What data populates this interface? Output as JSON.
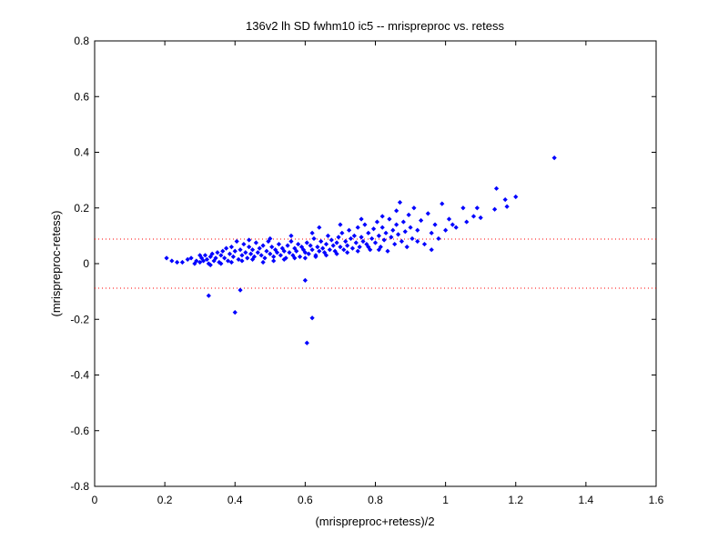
{
  "chart_data": {
    "type": "scatter",
    "title": "136v2 lh SD fwhm10 ic5 -- mrispreproc vs. retess",
    "xlabel": "(mrispreproc+retess)/2",
    "ylabel": "(mrispreproc-retess)",
    "xlim": [
      0,
      1.6
    ],
    "ylim": [
      -0.8,
      0.8
    ],
    "xticks": [
      "0",
      "0.2",
      "0.4",
      "0.6",
      "0.8",
      "1",
      "1.2",
      "1.4",
      "1.6"
    ],
    "yticks": [
      "-0.8",
      "-0.6",
      "-0.4",
      "-0.2",
      "0",
      "0.2",
      "0.4",
      "0.6",
      "0.8"
    ],
    "grid": false,
    "reference_lines_y": [
      0.088,
      -0.088
    ],
    "colors": {
      "points": "#0000ff",
      "reference": "#ff0000",
      "axes": "#000000"
    },
    "points": [
      [
        0.205,
        0.02
      ],
      [
        0.22,
        0.01
      ],
      [
        0.235,
        0.005
      ],
      [
        0.25,
        0.005
      ],
      [
        0.265,
        0.015
      ],
      [
        0.275,
        0.02
      ],
      [
        0.285,
        0.0
      ],
      [
        0.29,
        0.01
      ],
      [
        0.3,
        0.005
      ],
      [
        0.305,
        0.02
      ],
      [
        0.31,
        0.01
      ],
      [
        0.315,
        0.03
      ],
      [
        0.32,
        0.015
      ],
      [
        0.325,
        0.0
      ],
      [
        0.33,
        0.025
      ],
      [
        0.335,
        0.035
      ],
      [
        0.34,
        0.01
      ],
      [
        0.345,
        0.02
      ],
      [
        0.35,
        0.04
      ],
      [
        0.355,
        0.005
      ],
      [
        0.36,
        0.03
      ],
      [
        0.365,
        0.045
      ],
      [
        0.37,
        0.02
      ],
      [
        0.375,
        0.055
      ],
      [
        0.38,
        0.01
      ],
      [
        0.385,
        0.035
      ],
      [
        0.39,
        0.06
      ],
      [
        0.395,
        0.025
      ],
      [
        0.4,
        0.045
      ],
      [
        0.405,
        0.08
      ],
      [
        0.41,
        0.015
      ],
      [
        0.415,
        0.05
      ],
      [
        0.42,
        0.03
      ],
      [
        0.425,
        0.07
      ],
      [
        0.43,
        0.04
      ],
      [
        0.435,
        0.02
      ],
      [
        0.44,
        0.06
      ],
      [
        0.445,
        0.035
      ],
      [
        0.45,
        0.05
      ],
      [
        0.455,
        0.025
      ],
      [
        0.46,
        0.075
      ],
      [
        0.465,
        0.04
      ],
      [
        0.47,
        0.055
      ],
      [
        0.475,
        0.03
      ],
      [
        0.48,
        0.065
      ],
      [
        0.485,
        0.02
      ],
      [
        0.49,
        0.045
      ],
      [
        0.495,
        0.08
      ],
      [
        0.5,
        0.035
      ],
      [
        0.505,
        0.06
      ],
      [
        0.51,
        0.025
      ],
      [
        0.515,
        0.05
      ],
      [
        0.52,
        0.04
      ],
      [
        0.525,
        0.07
      ],
      [
        0.53,
        0.03
      ],
      [
        0.535,
        0.055
      ],
      [
        0.54,
        0.045
      ],
      [
        0.545,
        0.02
      ],
      [
        0.55,
        0.065
      ],
      [
        0.555,
        0.04
      ],
      [
        0.56,
        0.08
      ],
      [
        0.565,
        0.03
      ],
      [
        0.57,
        0.055
      ],
      [
        0.575,
        0.045
      ],
      [
        0.58,
        0.07
      ],
      [
        0.585,
        0.025
      ],
      [
        0.59,
        0.06
      ],
      [
        0.595,
        0.05
      ],
      [
        0.6,
        0.04
      ],
      [
        0.605,
        0.075
      ],
      [
        0.61,
        0.035
      ],
      [
        0.615,
        0.065
      ],
      [
        0.62,
        0.05
      ],
      [
        0.625,
        0.09
      ],
      [
        0.63,
        0.03
      ],
      [
        0.635,
        0.06
      ],
      [
        0.64,
        0.045
      ],
      [
        0.645,
        0.08
      ],
      [
        0.65,
        0.055
      ],
      [
        0.655,
        0.04
      ],
      [
        0.66,
        0.07
      ],
      [
        0.665,
        0.1
      ],
      [
        0.67,
        0.05
      ],
      [
        0.675,
        0.085
      ],
      [
        0.68,
        0.065
      ],
      [
        0.685,
        0.045
      ],
      [
        0.69,
        0.075
      ],
      [
        0.695,
        0.095
      ],
      [
        0.7,
        0.06
      ],
      [
        0.705,
        0.11
      ],
      [
        0.71,
        0.05
      ],
      [
        0.715,
        0.08
      ],
      [
        0.72,
        0.065
      ],
      [
        0.725,
        0.12
      ],
      [
        0.73,
        0.09
      ],
      [
        0.735,
        0.055
      ],
      [
        0.74,
        0.1
      ],
      [
        0.745,
        0.075
      ],
      [
        0.75,
        0.13
      ],
      [
        0.755,
        0.06
      ],
      [
        0.76,
        0.095
      ],
      [
        0.765,
        0.08
      ],
      [
        0.77,
        0.14
      ],
      [
        0.775,
        0.07
      ],
      [
        0.78,
        0.11
      ],
      [
        0.785,
        0.05
      ],
      [
        0.79,
        0.09
      ],
      [
        0.795,
        0.125
      ],
      [
        0.8,
        0.075
      ],
      [
        0.805,
        0.15
      ],
      [
        0.81,
        0.1
      ],
      [
        0.815,
        0.06
      ],
      [
        0.82,
        0.13
      ],
      [
        0.825,
        0.085
      ],
      [
        0.83,
        0.11
      ],
      [
        0.835,
        0.045
      ],
      [
        0.84,
        0.16
      ],
      [
        0.845,
        0.095
      ],
      [
        0.85,
        0.12
      ],
      [
        0.855,
        0.07
      ],
      [
        0.86,
        0.14
      ],
      [
        0.865,
        0.105
      ],
      [
        0.87,
        0.22
      ],
      [
        0.875,
        0.08
      ],
      [
        0.88,
        0.15
      ],
      [
        0.885,
        0.115
      ],
      [
        0.89,
        0.06
      ],
      [
        0.895,
        0.175
      ],
      [
        0.9,
        0.13
      ],
      [
        0.905,
        0.09
      ],
      [
        0.91,
        0.2
      ],
      [
        0.92,
        0.12
      ],
      [
        0.93,
        0.155
      ],
      [
        0.94,
        0.07
      ],
      [
        0.95,
        0.18
      ],
      [
        0.96,
        0.11
      ],
      [
        0.97,
        0.14
      ],
      [
        0.98,
        0.09
      ],
      [
        0.99,
        0.215
      ],
      [
        1.0,
        0.12
      ],
      [
        1.01,
        0.16
      ],
      [
        1.03,
        0.13
      ],
      [
        1.05,
        0.2
      ],
      [
        1.06,
        0.15
      ],
      [
        1.08,
        0.17
      ],
      [
        1.09,
        0.2
      ],
      [
        1.1,
        0.165
      ],
      [
        1.14,
        0.195
      ],
      [
        1.145,
        0.27
      ],
      [
        1.17,
        0.23
      ],
      [
        1.175,
        0.205
      ],
      [
        1.2,
        0.24
      ],
      [
        1.31,
        0.38
      ],
      [
        0.3,
        0.03
      ],
      [
        0.33,
        -0.005
      ],
      [
        0.36,
        0.0
      ],
      [
        0.39,
        0.005
      ],
      [
        0.42,
        0.01
      ],
      [
        0.45,
        0.015
      ],
      [
        0.48,
        0.005
      ],
      [
        0.51,
        0.01
      ],
      [
        0.54,
        0.015
      ],
      [
        0.57,
        0.02
      ],
      [
        0.6,
        0.02
      ],
      [
        0.63,
        0.025
      ],
      [
        0.66,
        0.03
      ],
      [
        0.69,
        0.035
      ],
      [
        0.72,
        0.04
      ],
      [
        0.75,
        0.045
      ],
      [
        0.78,
        0.06
      ],
      [
        0.81,
        0.05
      ],
      [
        0.44,
        0.085
      ],
      [
        0.5,
        0.09
      ],
      [
        0.56,
        0.1
      ],
      [
        0.62,
        0.11
      ],
      [
        0.64,
        0.13
      ],
      [
        0.7,
        0.14
      ],
      [
        0.76,
        0.16
      ],
      [
        0.82,
        0.17
      ],
      [
        0.86,
        0.19
      ],
      [
        0.92,
        0.08
      ],
      [
        0.96,
        0.05
      ],
      [
        1.02,
        0.14
      ],
      [
        0.325,
        -0.115
      ],
      [
        0.4,
        -0.175
      ],
      [
        0.415,
        -0.095
      ],
      [
        0.6,
        -0.06
      ],
      [
        0.62,
        -0.195
      ],
      [
        0.605,
        -0.285
      ]
    ]
  }
}
